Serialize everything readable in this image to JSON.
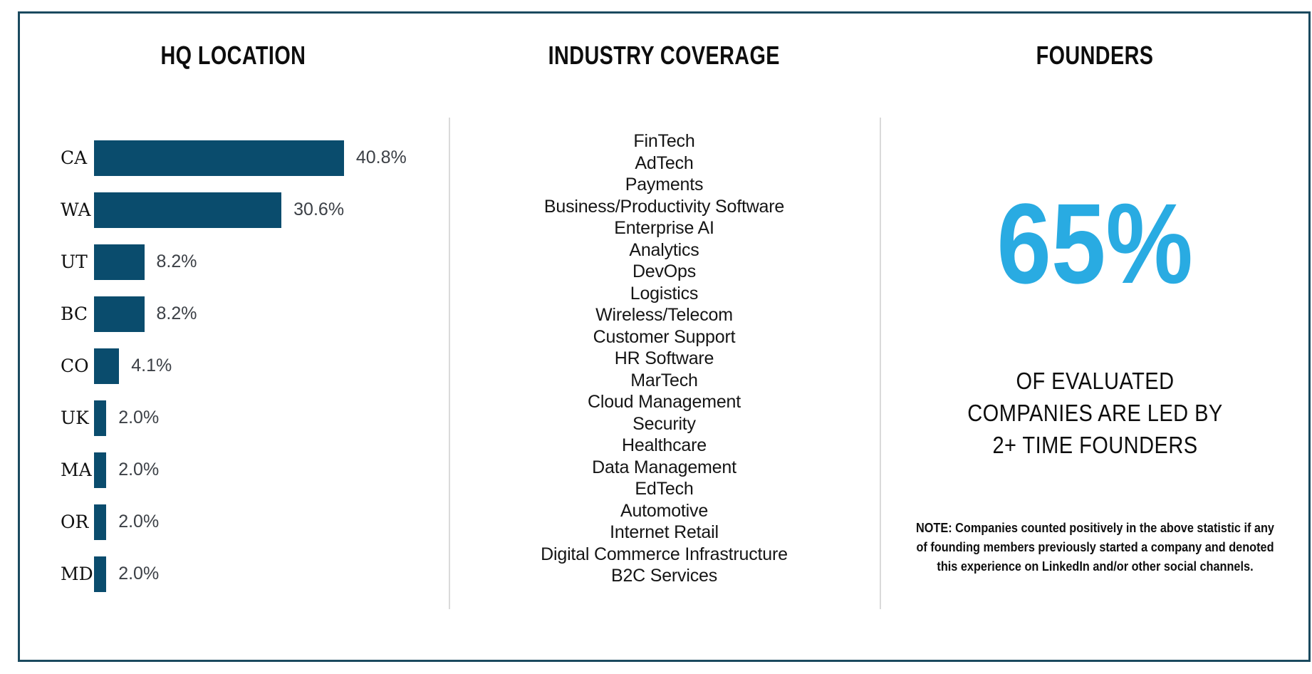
{
  "page": {
    "background_color": "#ffffff",
    "frame_border_color": "#1b4a5f",
    "divider_color": "#dadada"
  },
  "hq_column": {
    "title": "HQ LOCATION"
  },
  "industry_column": {
    "title": "INDUSTRY COVERAGE",
    "items": [
      "FinTech",
      "AdTech",
      "Payments",
      "Business/Productivity Software",
      "Enterprise AI",
      "Analytics",
      "DevOps",
      "Logistics",
      "Wireless/Telecom",
      "Customer Support",
      "HR Software",
      "MarTech",
      "Cloud Management",
      "Security",
      "Healthcare",
      "Data Management",
      "EdTech",
      "Automotive",
      "Internet Retail",
      "Digital Commerce Infrastructure",
      "B2C Services"
    ]
  },
  "founders_column": {
    "title": "FOUNDERS",
    "stat_value": "65%",
    "stat_color": "#29abe2",
    "statement_lines": [
      "OF EVALUATED",
      "COMPANIES ARE LED BY",
      "2+ TIME FOUNDERS"
    ],
    "note_lines": [
      "NOTE: Companies counted positively in the above statistic if any",
      "of founding members previously started a company and denoted",
      "this experience on LinkedIn and/or other social channels."
    ]
  },
  "chart_data": {
    "type": "bar",
    "orientation": "horizontal",
    "title": "HQ LOCATION",
    "xlabel": "",
    "ylabel": "",
    "categories": [
      "CA",
      "WA",
      "UT",
      "BC",
      "CO",
      "UK",
      "MA",
      "OR",
      "MD"
    ],
    "values": [
      40.8,
      30.6,
      8.2,
      8.2,
      4.1,
      2.0,
      2.0,
      2.0,
      2.0
    ],
    "value_labels": [
      "40.8%",
      "30.6%",
      "8.2%",
      "8.2%",
      "4.1%",
      "2.0%",
      "2.0%",
      "2.0%",
      "2.0%"
    ],
    "bar_color": "#0a4c6d",
    "value_label_color": "#3c4046",
    "xlim": [
      0,
      45
    ],
    "grid": false,
    "legend": false
  }
}
